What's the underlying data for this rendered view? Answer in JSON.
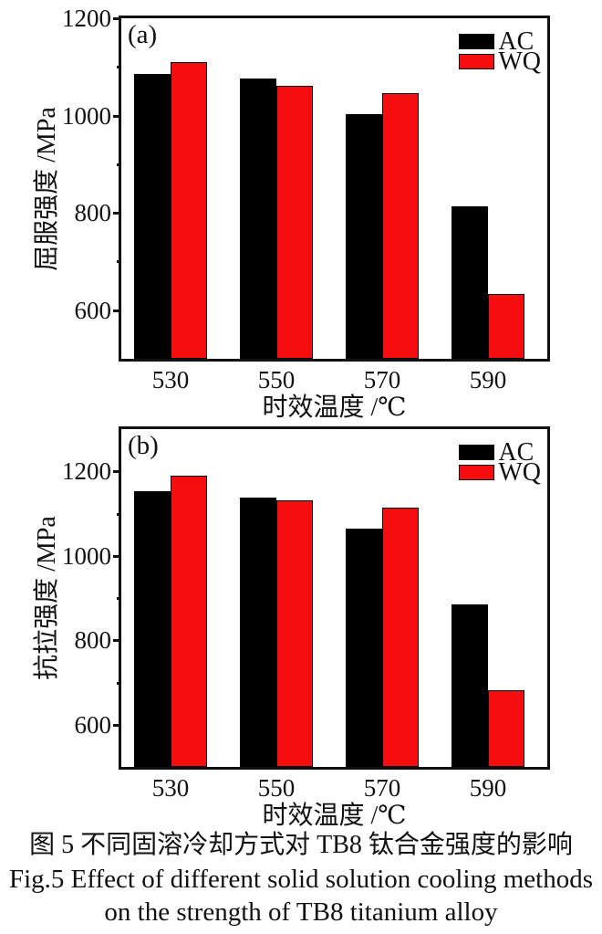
{
  "figure": {
    "caption_zh": "图 5  不同固溶冷却方式对 TB8 钛合金强度的影响",
    "caption_en_line1": "Fig.5  Effect of different solid solution cooling methods",
    "caption_en_line2": "on the strength of TB8 titanium alloy"
  },
  "colors": {
    "ac": "#000000",
    "wq": "#f60d0d",
    "frame": "#111111"
  },
  "chart_data": [
    {
      "id": "a",
      "type": "bar",
      "panel_label": "(a)",
      "ylabel": "屈服强度 /MPa",
      "xlabel": "时效温度 /℃",
      "categories": [
        "530",
        "550",
        "570",
        "590"
      ],
      "series": [
        {
          "name": "AC",
          "color": "#000000",
          "values": [
            1085,
            1077,
            1003,
            813
          ]
        },
        {
          "name": "WQ",
          "color": "#f60d0d",
          "values": [
            1110,
            1062,
            1047,
            634
          ]
        }
      ],
      "ylim": [
        500,
        1200
      ],
      "yticks_major": [
        600,
        800,
        1000,
        1200
      ],
      "yticks_minor": [
        700,
        900,
        1100
      ],
      "grid": false,
      "legend_position": "top-right"
    },
    {
      "id": "b",
      "type": "bar",
      "panel_label": "(b)",
      "ylabel": "抗拉强度 /MPa",
      "xlabel": "时效温度 /℃",
      "categories": [
        "530",
        "550",
        "570",
        "590"
      ],
      "series": [
        {
          "name": "AC",
          "color": "#000000",
          "values": [
            1152,
            1137,
            1064,
            885
          ]
        },
        {
          "name": "WQ",
          "color": "#f60d0d",
          "values": [
            1190,
            1131,
            1113,
            681
          ]
        }
      ],
      "ylim": [
        500,
        1300
      ],
      "yticks_major": [
        600,
        800,
        1000,
        1200
      ],
      "yticks_minor": [
        700,
        900,
        1100
      ],
      "grid": false,
      "legend_position": "top-right"
    }
  ]
}
